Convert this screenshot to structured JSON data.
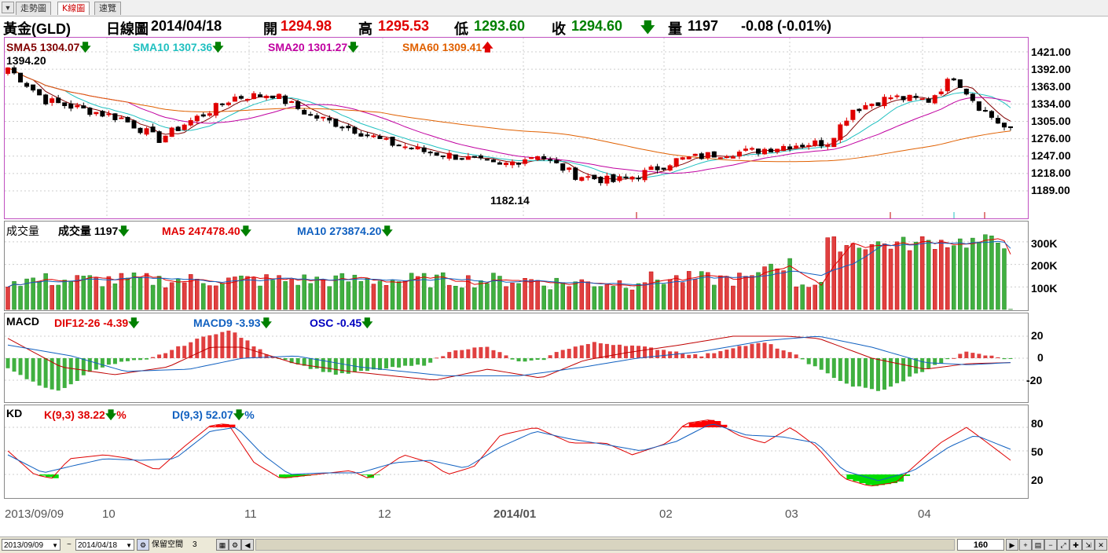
{
  "tabs": [
    {
      "label": "走勢圖",
      "active": false
    },
    {
      "label": "K線圖",
      "active": true
    },
    {
      "label": "速覽",
      "active": false
    }
  ],
  "header": {
    "symbol": "黃金(GLD)",
    "view": "日線圖",
    "date": "2014/04/18",
    "open_label": "開",
    "open": "1294.98",
    "high_label": "高",
    "high": "1295.53",
    "low_label": "低",
    "low": "1293.60",
    "close_label": "收",
    "close": "1294.60",
    "volume_label": "量",
    "volume": "1197",
    "change": "-0.08 (-0.01%)",
    "colors": {
      "up": "#e00000",
      "down": "#008000"
    }
  },
  "main_panel": {
    "legend": [
      {
        "label": "SMA5",
        "value": "1304.07",
        "dir": "down",
        "color": "#800000"
      },
      {
        "label": "SMA10",
        "value": "1307.36",
        "dir": "down",
        "color": "#20c0c0"
      },
      {
        "label": "SMA20",
        "value": "1301.27",
        "dir": "down",
        "color": "#c000a0"
      },
      {
        "label": "SMA60",
        "value": "1309.41",
        "dir": "up",
        "color": "#e06000"
      }
    ],
    "max_label": "1394.20",
    "min_label": "1182.14",
    "yticks": [
      "1421.00",
      "1392.00",
      "1363.00",
      "1334.00",
      "1305.00",
      "1276.00",
      "1247.00",
      "1218.00",
      "1189.00"
    ]
  },
  "volume_panel": {
    "title": "成交量",
    "legend": [
      {
        "label": "成交量",
        "value": "1197",
        "dir": "down",
        "color": "#000000"
      },
      {
        "label": "MA5",
        "value": "247478.40",
        "dir": "down",
        "color": "#e00000"
      },
      {
        "label": "MA10",
        "value": "273874.20",
        "dir": "down",
        "color": "#1060c0"
      }
    ],
    "yticks": [
      "300K",
      "200K",
      "100K"
    ]
  },
  "macd_panel": {
    "title": "MACD",
    "legend": [
      {
        "label": "DIF12-26",
        "value": "-4.39",
        "dir": "down",
        "color": "#e00000"
      },
      {
        "label": "MACD9",
        "value": "-3.93",
        "dir": "down",
        "color": "#1060c0"
      },
      {
        "label": "OSC",
        "value": "-0.45",
        "dir": "down",
        "color": "#0000c0"
      }
    ],
    "yticks": [
      "20",
      "0",
      "-20"
    ]
  },
  "kd_panel": {
    "title": "KD",
    "legend": [
      {
        "label": "K(9,3)",
        "value": "38.22",
        "dir": "down",
        "suffix": "%",
        "color": "#e00000"
      },
      {
        "label": "D(9,3)",
        "value": "52.07",
        "dir": "down",
        "suffix": "%",
        "color": "#1060c0"
      }
    ],
    "yticks": [
      "80",
      "50",
      "20"
    ]
  },
  "xaxis": {
    "labels": [
      "2013/09/09",
      "10",
      "11",
      "12",
      "2014/01",
      "02",
      "03",
      "04"
    ]
  },
  "bottom": {
    "start_date": "2013/09/09",
    "tilde": "~",
    "end_date": "2014/04/18",
    "reserve_label": "保留空間",
    "reserve_value": "3",
    "count": "160"
  },
  "chart_data": {
    "type": "candlestick",
    "x_start": "2013/09/09",
    "x_end": "2014/04/18",
    "price_key_points": [
      {
        "label": "2013/09/09",
        "price": 1394.2
      },
      {
        "label": "10",
        "price": 1320
      },
      {
        "label": "10 (late)",
        "price": 1265
      },
      {
        "label": "11 (early)",
        "price": 1350
      },
      {
        "label": "12",
        "price": 1230
      },
      {
        "label": "12 (late)",
        "price": 1182.14
      },
      {
        "label": "02",
        "price": 1250
      },
      {
        "label": "03",
        "price": 1340
      },
      {
        "label": "03 (mid)",
        "price": 1385
      },
      {
        "label": "04",
        "price": 1285
      },
      {
        "label": "2014/04/18",
        "price": 1294.6
      }
    ],
    "volume_last": 1197,
    "dif_last": -4.39,
    "macd9_last": -3.93,
    "osc_last": -0.45,
    "k_last": 38.22,
    "d_last": 52.07
  }
}
